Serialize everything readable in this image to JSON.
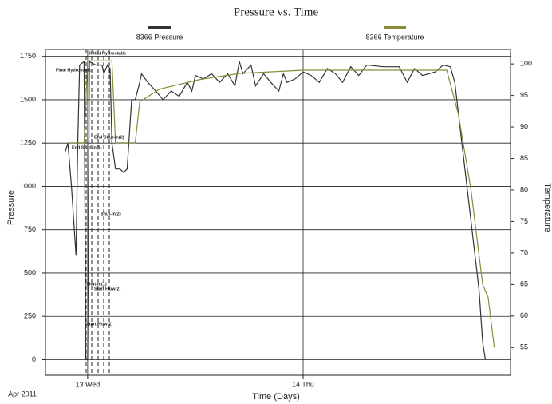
{
  "chart_data": {
    "type": "line",
    "title": "Pressure vs. Time",
    "x_label": "Time (Days)",
    "y_label": "Pressure",
    "y2_label": "Temperature",
    "date_label": "Apr 2011",
    "xlim": [
      -4.7,
      47.1
    ],
    "xticks": [
      {
        "value": 0,
        "label": "13 Wed"
      },
      {
        "value": 24,
        "label": "14 Thu"
      }
    ],
    "ylim": [
      -90,
      1790
    ],
    "yticks": [
      0,
      250,
      500,
      750,
      1000,
      1250,
      1500,
      1750
    ],
    "y2lim": [
      50.6,
      102.3
    ],
    "y2ticks": [
      55,
      60,
      65,
      70,
      75,
      80,
      85,
      90,
      95,
      100
    ],
    "grid": true,
    "legend": "top",
    "annotations": [
      "Initial Hydrostatic",
      "Final Hydrostatic",
      "End Shut-In(2)",
      "End Shut-In(1)",
      "Shut-In(2)",
      "Shut-In(1)",
      "Start Flow(2)",
      "Start Flow(1)"
    ],
    "series": [
      {
        "name": "8366 Pressure",
        "color": "#333333",
        "x": [
          -2.5,
          -2.2,
          -1.8,
          -1.3,
          -1.1,
          -0.9,
          -0.4,
          -0.2,
          0,
          0.2,
          0.9,
          1.6,
          1.8,
          2.2,
          2.5,
          2.7,
          3.1,
          3.6,
          4.0,
          4.4,
          4.9,
          5.3,
          5.8,
          6.0,
          6.7,
          7.6,
          8.4,
          9.3,
          10.2,
          11.1,
          11.6,
          12.0,
          12.9,
          13.8,
          14.7,
          15.6,
          16.4,
          16.9,
          17.3,
          18.2,
          18.7,
          19.6,
          20.4,
          21.3,
          21.8,
          22.2,
          23.1,
          24,
          24.9,
          25.8,
          26.7,
          27.6,
          28.4,
          29.3,
          30.2,
          31.1,
          32.9,
          34.7,
          35.6,
          36.4,
          37.3,
          38.7,
          39.6,
          40.4,
          40.9,
          41.8,
          42.7,
          43.6,
          44.0,
          44.3
        ],
        "values": [
          1200,
          1250,
          1000,
          600,
          1250,
          1700,
          1720,
          0,
          0,
          1720,
          1700,
          1700,
          1650,
          1700,
          1680,
          1250,
          1100,
          1100,
          1080,
          1100,
          1500,
          1500,
          1600,
          1650,
          1600,
          1550,
          1500,
          1550,
          1520,
          1600,
          1550,
          1640,
          1620,
          1650,
          1600,
          1650,
          1580,
          1720,
          1650,
          1700,
          1580,
          1650,
          1600,
          1550,
          1650,
          1600,
          1620,
          1660,
          1640,
          1600,
          1680,
          1650,
          1600,
          1690,
          1640,
          1700,
          1690,
          1690,
          1600,
          1680,
          1640,
          1660,
          1700,
          1690,
          1600,
          1200,
          800,
          400,
          100,
          0
        ]
      },
      {
        "name": "8366 Temperature",
        "color": "#8a8a3a",
        "axis": "y2",
        "x": [
          -2.2,
          -0.4,
          0,
          2.7,
          3.1,
          5.3,
          5.8,
          8.0,
          12.4,
          16.9,
          24,
          34.7,
          40,
          41.3,
          42.7,
          44,
          44.6,
          45.3
        ],
        "values": [
          87.5,
          87.5,
          100.5,
          100.5,
          87.5,
          87.5,
          94,
          96,
          97.5,
          98.5,
          99,
          99,
          99,
          92,
          80,
          65,
          63,
          55
        ]
      }
    ]
  }
}
